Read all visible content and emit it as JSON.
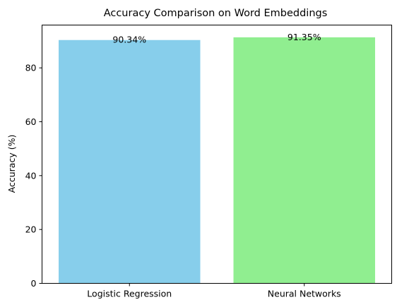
{
  "chart_data": {
    "type": "bar",
    "title": "Accuracy Comparison on Word Embeddings",
    "xlabel": "",
    "ylabel": "Accuracy (%)",
    "categories": [
      "Logistic Regression",
      "Neural Networks"
    ],
    "values": [
      90.34,
      91.35
    ],
    "data_labels": [
      "90.34%",
      "91.35%"
    ],
    "colors": [
      "#87CEEB",
      "#90EE90"
    ],
    "ylim": [
      0,
      95.9
    ],
    "yticks": [
      0,
      20,
      40,
      60,
      80
    ],
    "grid": false,
    "legend": "none"
  }
}
